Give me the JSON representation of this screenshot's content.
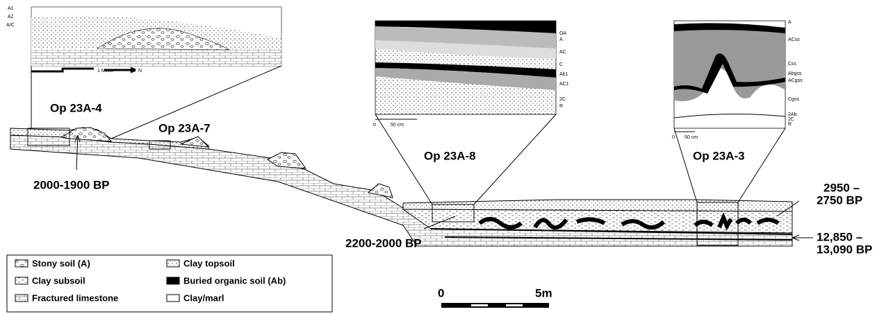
{
  "sections": [
    "Op 23A-4",
    "Op 23A-7",
    "Op 23A-8",
    "Op 23A-3"
  ],
  "dates": [
    "2000-1900 BP",
    "2200-2000 BP",
    "2950 –",
    "2750 BP",
    "12,850 –",
    "13,090 BP"
  ],
  "insets": [
    {
      "horizons": [
        "A1",
        "A2",
        "A/C"
      ],
      "scale": [
        "1 Meter",
        "N"
      ]
    },
    {
      "horizons": [
        "OA",
        "A",
        "AC",
        "C",
        "Ab1",
        "AC1",
        "2C",
        "R"
      ],
      "scale": [
        "0",
        "50 cm"
      ]
    },
    {
      "horizons": [
        "A",
        "ACss",
        "Css",
        "Abgss",
        "ACgss",
        "Cgss",
        "2Ab",
        "2C",
        "R"
      ],
      "scale": [
        "0",
        "50 cm"
      ]
    }
  ],
  "legend": [
    "Stony soil (A)",
    "Clay topsoil",
    "Clay subsoil",
    "Buried organic soil (Ab)",
    "Fractured limestone",
    "Clay/marl"
  ],
  "scale_bar": [
    "0",
    "5m"
  ]
}
